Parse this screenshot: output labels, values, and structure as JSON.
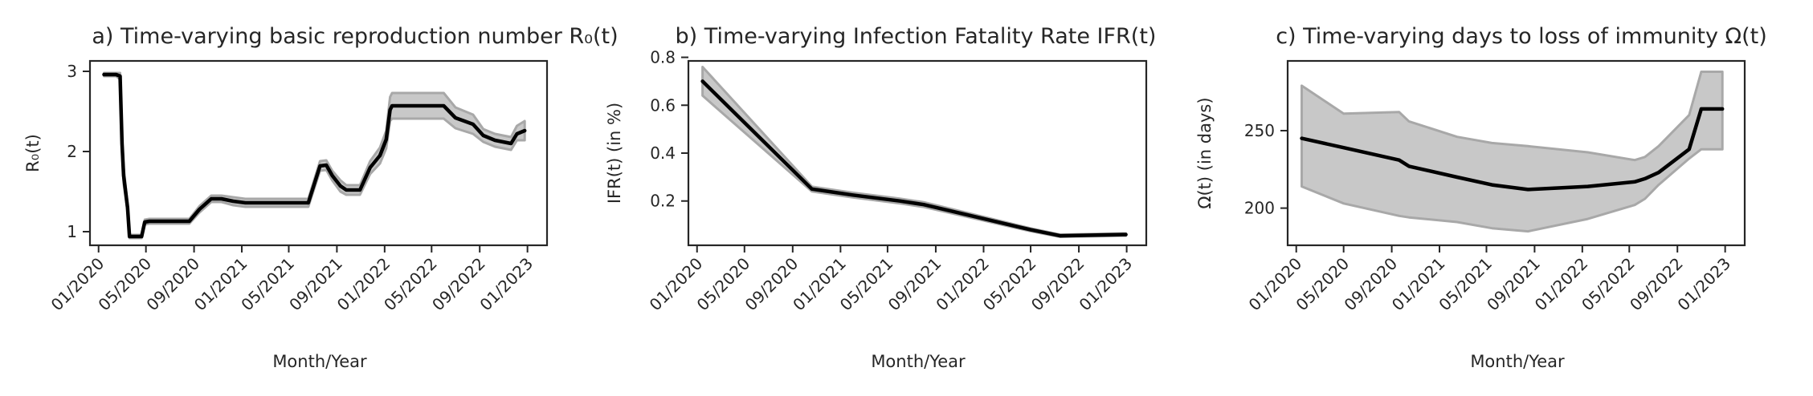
{
  "chart_data": [
    {
      "type": "line",
      "title": "a) Time-varying basic reproduction number R₀(t)",
      "xlabel": "Month/Year",
      "ylabel": "R₀(t)",
      "x_ticks": [
        "01/2020",
        "05/2020",
        "09/2020",
        "01/2021",
        "05/2021",
        "09/2021",
        "01/2022",
        "05/2022",
        "09/2022",
        "01/2023"
      ],
      "x_range": [
        "2019-12-10",
        "2023-02-20"
      ],
      "y_ticks": [
        1,
        2,
        3
      ],
      "ylim": [
        0.83,
        3.13
      ],
      "grid": false,
      "series": [
        {
          "x": [
            "2020-01-15",
            "2020-02-15",
            "2020-02-25",
            "2020-03-01",
            "2020-03-05",
            "2020-03-15",
            "2020-03-20",
            "2020-04-20",
            "2020-04-28",
            "2020-05-10",
            "2020-08-20",
            "2020-09-15",
            "2020-10-15",
            "2020-11-10",
            "2020-12-10",
            "2021-01-10",
            "2021-01-20",
            "2021-06-20",
            "2021-07-20",
            "2021-08-05",
            "2021-08-20",
            "2021-09-10",
            "2021-09-25",
            "2021-10-30",
            "2021-11-25",
            "2021-12-20",
            "2022-01-05",
            "2022-01-15",
            "2022-01-20",
            "2022-06-01",
            "2022-07-01",
            "2022-08-15",
            "2022-09-10",
            "2022-10-10",
            "2022-11-20",
            "2022-12-05",
            "2022-12-25"
          ],
          "y": [
            2.96,
            2.96,
            2.94,
            2.1,
            1.7,
            1.3,
            0.94,
            0.94,
            1.12,
            1.13,
            1.13,
            1.28,
            1.41,
            1.41,
            1.38,
            1.36,
            1.36,
            1.36,
            1.82,
            1.83,
            1.7,
            1.57,
            1.52,
            1.52,
            1.8,
            1.95,
            2.15,
            2.52,
            2.57,
            2.57,
            2.42,
            2.34,
            2.2,
            2.14,
            2.1,
            2.22,
            2.26
          ],
          "lower": [
            2.94,
            2.94,
            2.9,
            2.0,
            1.6,
            1.25,
            0.92,
            0.92,
            1.09,
            1.1,
            1.1,
            1.24,
            1.37,
            1.37,
            1.33,
            1.31,
            1.31,
            1.31,
            1.76,
            1.77,
            1.64,
            1.5,
            1.46,
            1.46,
            1.72,
            1.85,
            2.04,
            2.38,
            2.41,
            2.41,
            2.29,
            2.22,
            2.12,
            2.06,
            2.02,
            2.14,
            2.14
          ],
          "upper": [
            2.98,
            2.98,
            2.98,
            2.2,
            1.8,
            1.35,
            0.96,
            0.96,
            1.15,
            1.16,
            1.16,
            1.32,
            1.45,
            1.45,
            1.43,
            1.41,
            1.41,
            1.41,
            1.88,
            1.89,
            1.76,
            1.64,
            1.58,
            1.58,
            1.88,
            2.05,
            2.26,
            2.68,
            2.73,
            2.73,
            2.55,
            2.46,
            2.28,
            2.22,
            2.18,
            2.32,
            2.38
          ]
        }
      ]
    },
    {
      "type": "line",
      "title": "b) Time-varying Infection Fatality Rate IFR(t)",
      "xlabel": "Month/Year",
      "ylabel": "IFR(t) (in %)",
      "x_ticks": [
        "01/2020",
        "05/2020",
        "09/2020",
        "01/2021",
        "05/2021",
        "09/2021",
        "01/2022",
        "05/2022",
        "09/2022",
        "01/2023"
      ],
      "x_range": [
        "2019-12-10",
        "2023-02-20"
      ],
      "y_ticks": [
        0.2,
        0.4,
        0.6,
        0.8
      ],
      "ylim": [
        0.015,
        0.785
      ],
      "grid": false,
      "series": [
        {
          "x": [
            "2020-01-15",
            "2020-10-20",
            "2021-02-01",
            "2021-06-01",
            "2021-08-01",
            "2022-05-01",
            "2022-07-15",
            "2022-12-30"
          ],
          "y": [
            0.7,
            0.25,
            0.225,
            0.2,
            0.185,
            0.08,
            0.055,
            0.06
          ],
          "lower": [
            0.64,
            0.24,
            0.215,
            0.19,
            0.175,
            0.074,
            0.05,
            0.055
          ],
          "upper": [
            0.76,
            0.26,
            0.235,
            0.21,
            0.195,
            0.086,
            0.06,
            0.065
          ]
        }
      ]
    },
    {
      "type": "line",
      "title": "c) Time-varying days to loss of immunity Ω(t)",
      "xlabel": "Month/Year",
      "ylabel": "Ω(t) (in days)",
      "x_ticks": [
        "01/2020",
        "05/2020",
        "09/2020",
        "01/2021",
        "05/2021",
        "09/2021",
        "01/2022",
        "05/2022",
        "09/2022",
        "01/2023"
      ],
      "x_range": [
        "2019-12-10",
        "2023-02-20"
      ],
      "y_ticks": [
        200,
        250
      ],
      "ylim": [
        176,
        295
      ],
      "grid": false,
      "series": [
        {
          "x": [
            "2020-01-15",
            "2020-05-01",
            "2020-09-20",
            "2020-10-15",
            "2021-02-15",
            "2021-05-15",
            "2021-08-15",
            "2022-01-15",
            "2022-05-15",
            "2022-06-10",
            "2022-07-15",
            "2022-10-01",
            "2022-11-01",
            "2022-12-25"
          ],
          "y": [
            245,
            239,
            231,
            227,
            220,
            215,
            212,
            214,
            217,
            219,
            223,
            238,
            264,
            264
          ],
          "lower": [
            214,
            203,
            195,
            194,
            191,
            187,
            185,
            193,
            202,
            206,
            215,
            232,
            238,
            238
          ],
          "upper": [
            279,
            261,
            262,
            256,
            246,
            242,
            240,
            236,
            231,
            233,
            240,
            260,
            288,
            288
          ]
        }
      ]
    }
  ]
}
